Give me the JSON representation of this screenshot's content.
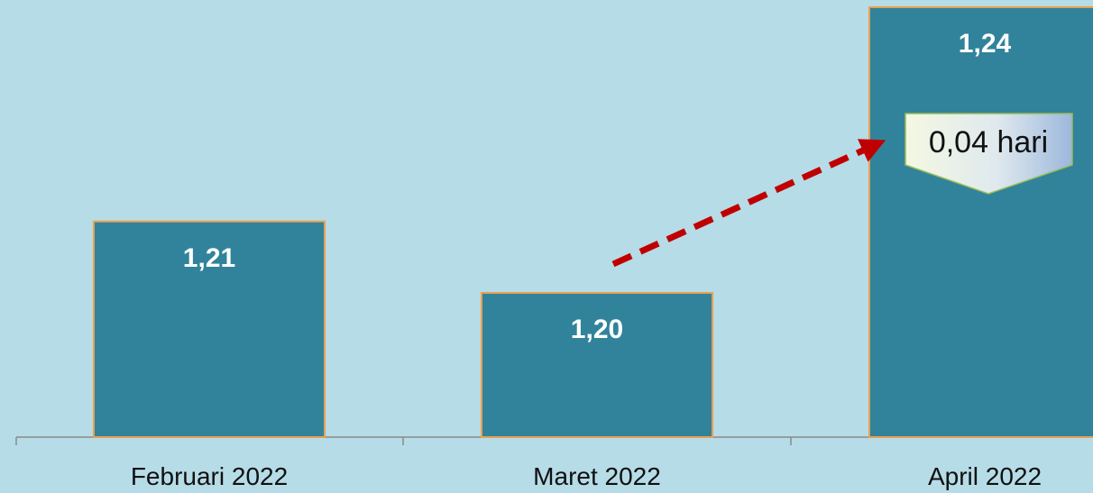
{
  "chart_data": {
    "type": "bar",
    "categories": [
      "Februari 2022",
      "Maret 2022",
      "April 2022"
    ],
    "values": [
      1.21,
      1.2,
      1.24
    ],
    "value_labels": [
      "1,21",
      "1,20",
      "1,24"
    ],
    "annotation": {
      "text": "0,04 hari",
      "from_category": "Maret 2022",
      "to_category": "April 2022"
    },
    "grid": false,
    "colors": {
      "background": "#b6dce7",
      "bar": "#31839b",
      "bar_border": "#e9a04f",
      "arrow": "#c00000"
    }
  }
}
